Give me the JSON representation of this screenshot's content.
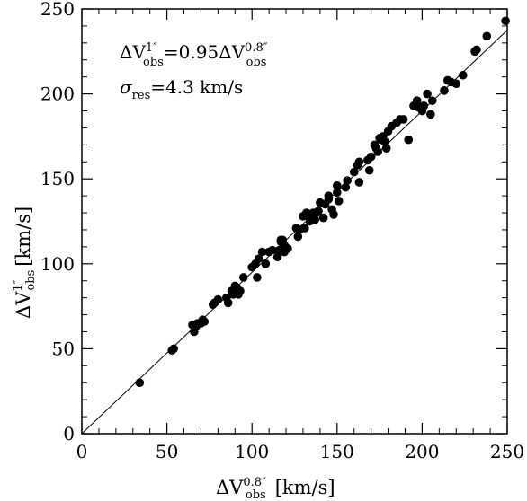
{
  "chart_data": {
    "type": "scatter",
    "xlim": [
      0,
      250
    ],
    "ylim": [
      0,
      250
    ],
    "x_ticks": [
      0,
      50,
      100,
      150,
      200,
      250
    ],
    "y_ticks": [
      0,
      50,
      100,
      150,
      200,
      250
    ],
    "x_tick_labels": [
      "0",
      "50",
      "100",
      "150",
      "200",
      "250"
    ],
    "y_tick_labels": [
      "0",
      "50",
      "100",
      "150",
      "200",
      "250"
    ],
    "grid": false,
    "xlabel": {
      "base": "ΔV",
      "sup": "0.8″",
      "sub": "obs",
      "unit": "[km/s]"
    },
    "ylabel": {
      "base": "ΔV",
      "sup": "1″",
      "sub": "obs",
      "unit": "[km/s]"
    },
    "annotations": [
      {
        "id": "relation",
        "lhs_base": "ΔV",
        "lhs_sup": "1″",
        "lhs_sub": "obs",
        "op": "=0.95ΔV",
        "rhs_sup": "0.8″",
        "rhs_sub": "obs"
      },
      {
        "id": "sigma",
        "base": "σ",
        "sub": "res",
        "value": "=4.3  km/s"
      }
    ],
    "fit_line": {
      "slope": 0.95,
      "intercept": 0,
      "x_range": [
        0,
        250
      ]
    },
    "points": [
      [
        34,
        30
      ],
      [
        53,
        49
      ],
      [
        54,
        50
      ],
      [
        65,
        64
      ],
      [
        66,
        60
      ],
      [
        67,
        63
      ],
      [
        68,
        65
      ],
      [
        70,
        65
      ],
      [
        71,
        67
      ],
      [
        72,
        66
      ],
      [
        77,
        76
      ],
      [
        78,
        77
      ],
      [
        80,
        79
      ],
      [
        85,
        80
      ],
      [
        86,
        77
      ],
      [
        88,
        84
      ],
      [
        89,
        82
      ],
      [
        90,
        85
      ],
      [
        90,
        87
      ],
      [
        91,
        86
      ],
      [
        92,
        82
      ],
      [
        93,
        84
      ],
      [
        95,
        92
      ],
      [
        100,
        98
      ],
      [
        102,
        100
      ],
      [
        103,
        92
      ],
      [
        104,
        103
      ],
      [
        106,
        107
      ],
      [
        108,
        100
      ],
      [
        110,
        107
      ],
      [
        112,
        108
      ],
      [
        115,
        104
      ],
      [
        116,
        108
      ],
      [
        117,
        113
      ],
      [
        117,
        114
      ],
      [
        118,
        114
      ],
      [
        119,
        111
      ],
      [
        119,
        107
      ],
      [
        121,
        109
      ],
      [
        126,
        121
      ],
      [
        127,
        116
      ],
      [
        128,
        120
      ],
      [
        130,
        128
      ],
      [
        131,
        121
      ],
      [
        132,
        130
      ],
      [
        133,
        128
      ],
      [
        134,
        125
      ],
      [
        135,
        129
      ],
      [
        136,
        130
      ],
      [
        137,
        126
      ],
      [
        138,
        130
      ],
      [
        139,
        131
      ],
      [
        140,
        136
      ],
      [
        142,
        127
      ],
      [
        143,
        135
      ],
      [
        145,
        138
      ],
      [
        145,
        140
      ],
      [
        147,
        132
      ],
      [
        148,
        129
      ],
      [
        150,
        146
      ],
      [
        150,
        142
      ],
      [
        151,
        137
      ],
      [
        155,
        145
      ],
      [
        156,
        149
      ],
      [
        160,
        154
      ],
      [
        162,
        158
      ],
      [
        163,
        160
      ],
      [
        163,
        148
      ],
      [
        168,
        161
      ],
      [
        169,
        155
      ],
      [
        170,
        163
      ],
      [
        172,
        170
      ],
      [
        173,
        168
      ],
      [
        174,
        166
      ],
      [
        175,
        174
      ],
      [
        176,
        173
      ],
      [
        177,
        175
      ],
      [
        178,
        172
      ],
      [
        179,
        168
      ],
      [
        180,
        178
      ],
      [
        182,
        181
      ],
      [
        185,
        183
      ],
      [
        187,
        185
      ],
      [
        189,
        185
      ],
      [
        192,
        173
      ],
      [
        195,
        193
      ],
      [
        197,
        196
      ],
      [
        198,
        192
      ],
      [
        200,
        190
      ],
      [
        201,
        193
      ],
      [
        203,
        200
      ],
      [
        205,
        188
      ],
      [
        206,
        196
      ],
      [
        213,
        202
      ],
      [
        215,
        208
      ],
      [
        217,
        207
      ],
      [
        220,
        206
      ],
      [
        224,
        211
      ],
      [
        231,
        225
      ],
      [
        232,
        226
      ],
      [
        238,
        234
      ],
      [
        249,
        243
      ]
    ]
  }
}
